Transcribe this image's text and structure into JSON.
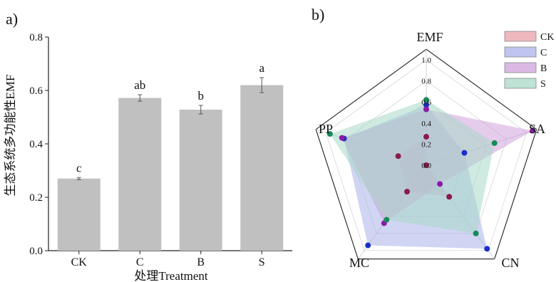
{
  "panels": {
    "a_label": "a)",
    "b_label": "b)"
  },
  "chart_data": [
    {
      "type": "bar",
      "panel": "a)",
      "categories": [
        "CK",
        "C",
        "B",
        "S"
      ],
      "values": [
        0.27,
        0.572,
        0.528,
        0.62
      ],
      "errors": [
        0.004,
        0.012,
        0.016,
        0.028
      ],
      "significance_letters": [
        "c",
        "ab",
        "b",
        "a"
      ],
      "xlabel": "处理Treatment",
      "ylabel": "生态系统多功能性EMF",
      "ylim": [
        0,
        0.8
      ],
      "yticks": [
        "0.0",
        "0.2",
        "0.4",
        "0.6",
        "0.8"
      ],
      "bar_color": "#c0c0c0",
      "grid": false
    },
    {
      "type": "radar",
      "panel": "b)",
      "axes": [
        "EMF",
        "SA",
        "CN",
        "MC",
        "PP"
      ],
      "rlim": [
        0,
        1.0
      ],
      "rticks": [
        "0.0",
        "0.2",
        "0.4",
        "0.6",
        "0.8",
        "1.0"
      ],
      "legend_position": "top-right",
      "series": [
        {
          "name": "CK",
          "values": [
            0.27,
            0.0,
            0.37,
            0.31,
            0.28
          ],
          "fill": "#e8a0a8",
          "point": "#8b1a4a"
        },
        {
          "name": "C",
          "values": [
            0.57,
            0.38,
            0.98,
            0.94,
            0.82
          ],
          "fill": "#aab2ea",
          "point": "#1a2fc8"
        },
        {
          "name": "B",
          "values": [
            0.53,
            1.06,
            0.22,
            0.68,
            0.84
          ],
          "fill": "#cfa2dc",
          "point": "#8a1aa8"
        },
        {
          "name": "S",
          "values": [
            0.62,
            0.68,
            0.8,
            0.64,
            0.96
          ],
          "fill": "#a8d8c6",
          "point": "#168a5a"
        }
      ]
    }
  ]
}
